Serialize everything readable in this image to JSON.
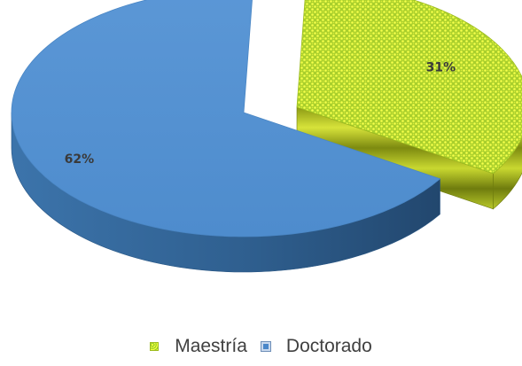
{
  "chart_data": {
    "type": "pie",
    "style": "3d-exploded",
    "title": "",
    "slices": [
      {
        "label": "Maestría",
        "value": 31,
        "display": "31%",
        "color": "#c4e12e",
        "pattern": "dotted"
      },
      {
        "label": "Doctorado",
        "value": 62,
        "display": "62%",
        "color": "#4a87c9"
      }
    ],
    "legend_position": "bottom"
  },
  "legend": {
    "items": [
      {
        "label": "Maestría",
        "icon": "dotted-yellow-green-square-icon"
      },
      {
        "label": "Doctorado",
        "icon": "blue-square-icon"
      }
    ]
  }
}
